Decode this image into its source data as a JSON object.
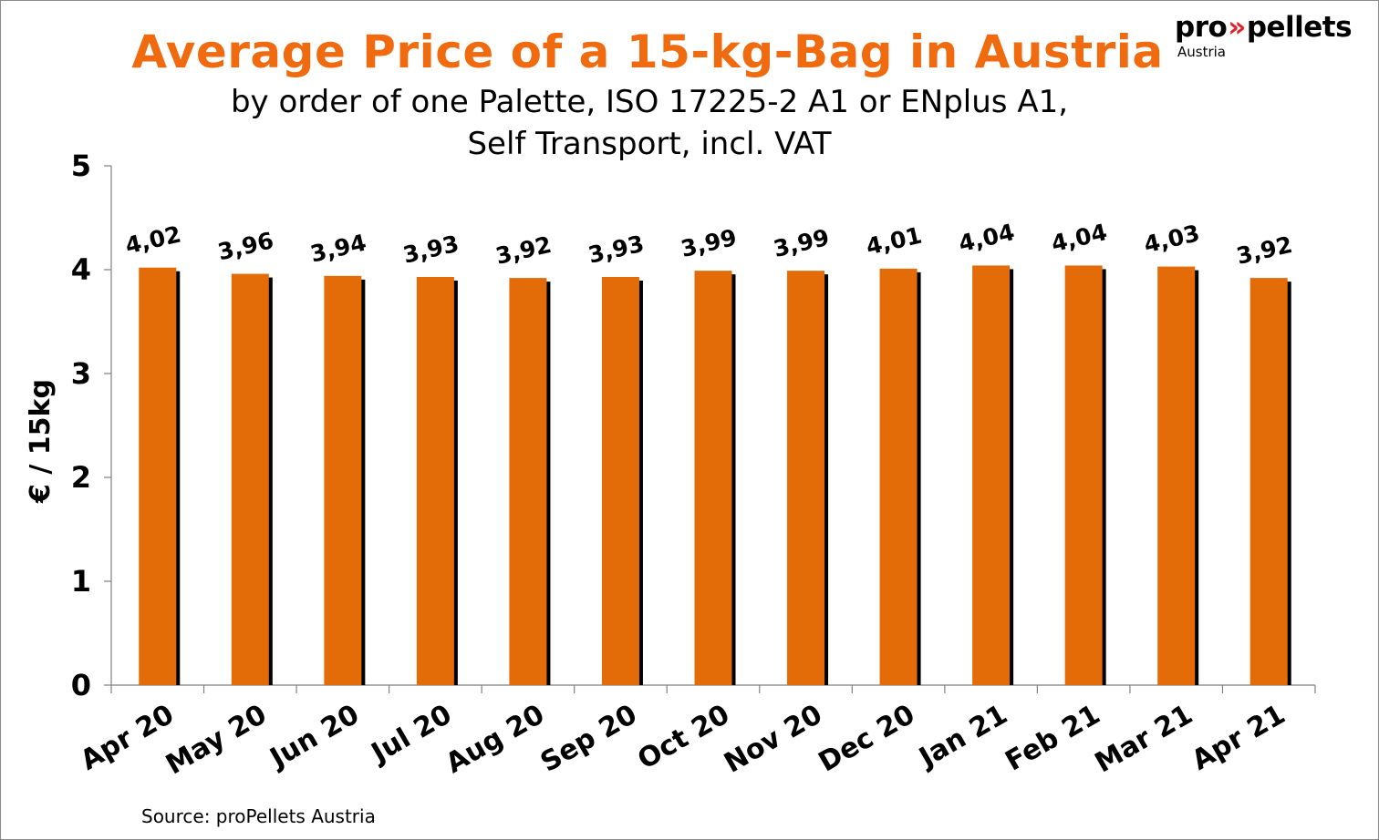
{
  "title": "Average Price of a 15-kg-Bag in Austria",
  "subtitle_line1": "by order of one Palette, ISO 17225-2 A1 or ENplus A1,",
  "subtitle_line2": "Self Transport, incl. VAT",
  "logo": {
    "pro": "pro",
    "arrows": "»",
    "pellets": "pellets",
    "country": "Austria"
  },
  "source": "Source: proPellets Austria",
  "colors": {
    "bar": "#e36c09",
    "shadow": "#000000",
    "title": "#f06a0f",
    "logo_arrows": "#e01f26"
  },
  "chart_data": {
    "type": "bar",
    "title": "Average Price of a 15-kg-Bag in Austria",
    "ylabel": "€ / 15kg",
    "xlabel": "",
    "ylim": [
      0,
      5
    ],
    "yticks": [
      "0",
      "1",
      "2",
      "3",
      "4",
      "5"
    ],
    "grid": false,
    "categories": [
      "Apr 20",
      "May 20",
      "Jun 20",
      "Jul 20",
      "Aug 20",
      "Sep 20",
      "Oct 20",
      "Nov 20",
      "Dec 20",
      "Jan 21",
      "Feb 21",
      "Mar 21",
      "Apr 21"
    ],
    "values": [
      4.02,
      3.96,
      3.94,
      3.93,
      3.92,
      3.93,
      3.99,
      3.99,
      4.01,
      4.04,
      4.04,
      4.03,
      3.92
    ],
    "value_labels": [
      "4,02",
      "3,96",
      "3,94",
      "3,93",
      "3,92",
      "3,93",
      "3,99",
      "3,99",
      "4,01",
      "4,04",
      "4,04",
      "4,03",
      "3,92"
    ]
  }
}
